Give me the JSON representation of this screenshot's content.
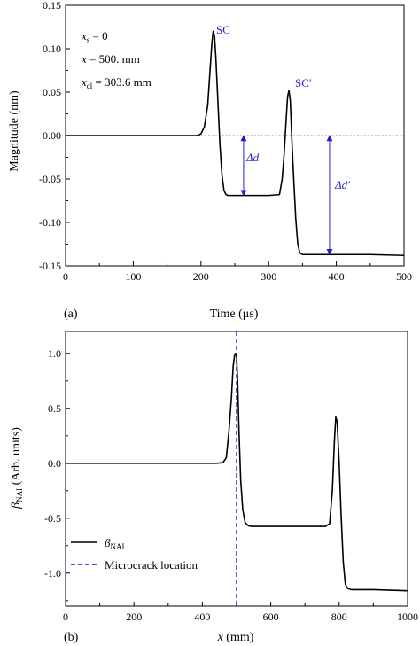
{
  "chart_data": [
    {
      "type": "line",
      "panel_label": "(a)",
      "xlabel": "Time (μs)",
      "ylabel": "Magnitude (nm)",
      "xlim": [
        0,
        500
      ],
      "ylim": [
        -0.15,
        0.15
      ],
      "xticks": [
        "0",
        "100",
        "200",
        "300",
        "400",
        "500"
      ],
      "yticks": [
        "0.15",
        "0.10",
        "0.05",
        "0.00",
        "-0.05",
        "-0.10",
        "-0.15"
      ],
      "grid": false,
      "params": {
        "line1": {
          "sym": "x",
          "sub": "s",
          "rest": " = 0"
        },
        "line2": {
          "sym": "x",
          "rest": " = 500. mm"
        },
        "line3": {
          "sym": "x",
          "sub": "cl",
          "rest": " = 303.6 mm"
        }
      },
      "annotations": {
        "sc": "SC",
        "sc_prime": "SC′",
        "delta_d": "Δd",
        "delta_d_prime": "Δd′"
      },
      "series": [
        {
          "x": [
            0,
            195,
            200,
            205,
            210,
            213,
            216,
            218,
            220,
            222,
            225,
            228,
            231,
            234,
            237,
            240,
            245,
            250,
            260,
            300,
            316,
            320,
            323,
            326,
            328,
            330,
            332,
            334,
            337,
            340,
            343,
            346,
            350,
            360,
            400,
            450,
            500
          ],
          "y": [
            0.0,
            0.0,
            0.002,
            0.01,
            0.035,
            0.07,
            0.105,
            0.12,
            0.115,
            0.09,
            0.04,
            -0.01,
            -0.045,
            -0.063,
            -0.068,
            -0.069,
            -0.069,
            -0.069,
            -0.069,
            -0.069,
            -0.068,
            -0.05,
            -0.02,
            0.02,
            0.045,
            0.052,
            0.04,
            0.0,
            -0.05,
            -0.095,
            -0.125,
            -0.135,
            -0.137,
            -0.137,
            -0.137,
            -0.137,
            -0.138
          ]
        }
      ],
      "guides": {
        "zero_line": {
          "x": [
            200,
            500
          ],
          "y": 0
        },
        "delta_d": {
          "x": 263,
          "y1": 0,
          "y2": -0.069
        },
        "delta_d_prime": {
          "x": 390,
          "y1": 0,
          "y2": -0.137
        }
      }
    },
    {
      "type": "line",
      "panel_label": "(b)",
      "xlabel": "x (mm)",
      "ylabel_sym": "β",
      "ylabel_sub": "NAI",
      "ylabel_rest": " (Arb. units)",
      "xlim": [
        0,
        1000
      ],
      "ylim": [
        -1.3,
        1.2
      ],
      "xticks": [
        "0",
        "200",
        "400",
        "600",
        "800",
        "1000"
      ],
      "yticks": [
        "1.0",
        "0.5",
        "0.0",
        "-0.5",
        "-1.0"
      ],
      "grid": false,
      "legend": {
        "placement": "bottom-left",
        "line_sym": "β",
        "line_sub": "NAI",
        "dashed": "Microcrack location"
      },
      "series": [
        {
          "x": [
            0,
            440,
            460,
            470,
            478,
            485,
            490,
            494,
            497,
            500,
            503,
            507,
            512,
            518,
            525,
            535,
            545,
            560,
            600,
            700,
            760,
            772,
            780,
            786,
            790,
            794,
            800,
            806,
            812,
            818,
            825,
            835,
            850,
            900,
            1000
          ],
          "y": [
            0.0,
            0.0,
            0.005,
            0.05,
            0.3,
            0.6,
            0.88,
            0.98,
            1.0,
            0.97,
            0.75,
            0.3,
            -0.15,
            -0.42,
            -0.54,
            -0.57,
            -0.575,
            -0.575,
            -0.575,
            -0.575,
            -0.575,
            -0.55,
            -0.25,
            0.2,
            0.42,
            0.38,
            0.0,
            -0.5,
            -0.9,
            -1.1,
            -1.14,
            -1.15,
            -1.15,
            -1.15,
            -1.16
          ]
        }
      ],
      "microcrack_x": 500
    }
  ]
}
